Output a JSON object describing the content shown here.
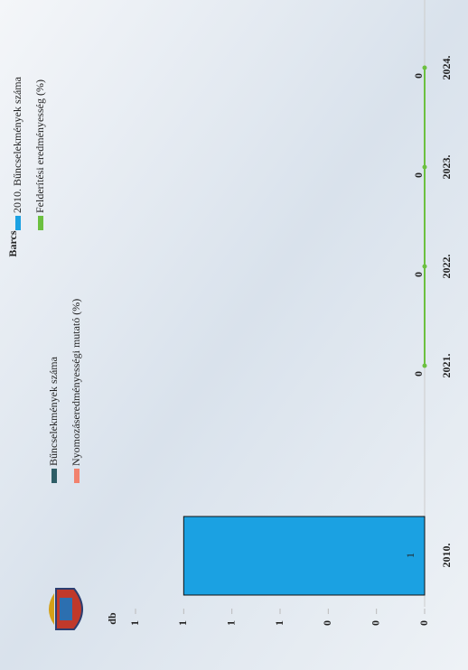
{
  "chart_data": {
    "type": "combo",
    "title": "Barcs",
    "y_label": "db",
    "categories": [
      "2010.",
      "2021.",
      "2022.",
      "2023.",
      "2024."
    ],
    "series": [
      {
        "name": "2010. Bűncselekmények száma",
        "type": "bar",
        "color": "#1ba1e2",
        "values": [
          1,
          null,
          null,
          null,
          null
        ]
      },
      {
        "name": "Bűncselekmények száma",
        "type": "bar",
        "color": "#2e5d66",
        "values": [
          null,
          null,
          null,
          null,
          null
        ]
      },
      {
        "name": "Nyomozáseredményességi mutató (%)",
        "type": "line",
        "color": "#f2826e",
        "values": [
          null,
          null,
          null,
          null,
          null
        ]
      },
      {
        "name": "Felderítési eredményesség (%)",
        "type": "line",
        "color": "#6cc040",
        "values": [
          null,
          0,
          0,
          0,
          0
        ]
      }
    ],
    "ylim": [
      0,
      1.2
    ],
    "yticks": [
      0,
      {
        "value": 0.2,
        "label": "0"
      },
      {
        "value": 0.4,
        "label": "0"
      },
      {
        "value": 0.6,
        "label": "1"
      },
      {
        "value": 0.8,
        "label": "1"
      },
      1,
      {
        "value": 1.2,
        "label": "1"
      }
    ]
  }
}
